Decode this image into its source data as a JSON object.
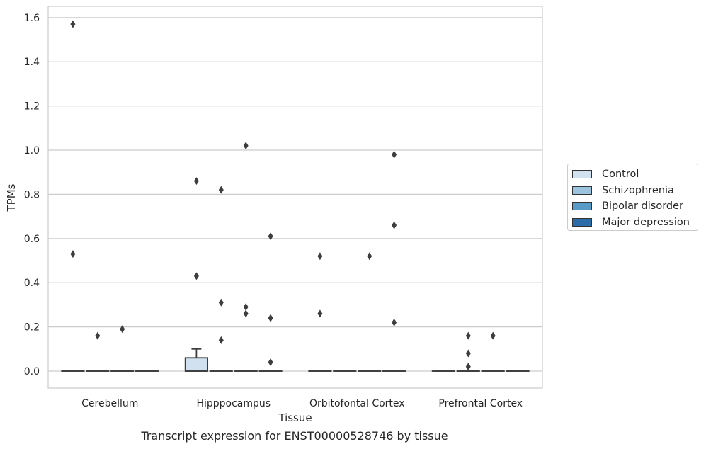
{
  "chart_data": {
    "type": "box",
    "xlabel": "Tissue",
    "ylabel": "TPMs",
    "caption": "Transcript expression for ENST00000528746 by tissue",
    "categories": [
      "Cerebellum",
      "Hipppocampus",
      "Orbitofontal Cortex",
      "Prefrontal Cortex"
    ],
    "ylim": [
      -0.08,
      1.65
    ],
    "yticks": [
      "0.0",
      "0.2",
      "0.4",
      "0.6",
      "0.8",
      "1.0",
      "1.2",
      "1.4",
      "1.6"
    ],
    "grid": true,
    "legend_position": "right",
    "series": [
      {
        "name": "Control",
        "color": "#d1e1ef",
        "boxes": [
          {
            "category": "Cerebellum",
            "q1": 0,
            "median": 0,
            "q3": 0,
            "whisker_low": 0,
            "whisker_high": 0,
            "outliers": [
              1.57,
              0.53
            ]
          },
          {
            "category": "Hipppocampus",
            "q1": 0,
            "median": 0,
            "q3": 0.06,
            "whisker_low": 0,
            "whisker_high": 0.1,
            "outliers": [
              0.86,
              0.43
            ]
          },
          {
            "category": "Orbitofontal Cortex",
            "q1": 0,
            "median": 0,
            "q3": 0,
            "whisker_low": 0,
            "whisker_high": 0,
            "outliers": [
              0.52,
              0.26
            ]
          },
          {
            "category": "Prefrontal Cortex",
            "q1": 0,
            "median": 0,
            "q3": 0,
            "whisker_low": 0,
            "whisker_high": 0,
            "outliers": []
          }
        ]
      },
      {
        "name": "Schizophrenia",
        "color": "#9dc4de",
        "boxes": [
          {
            "category": "Cerebellum",
            "q1": 0,
            "median": 0,
            "q3": 0,
            "whisker_low": 0,
            "whisker_high": 0,
            "outliers": [
              0.16
            ]
          },
          {
            "category": "Hipppocampus",
            "q1": 0,
            "median": 0,
            "q3": 0,
            "whisker_low": 0,
            "whisker_high": 0,
            "outliers": [
              0.82,
              0.31,
              0.14
            ]
          },
          {
            "category": "Orbitofontal Cortex",
            "q1": 0,
            "median": 0,
            "q3": 0,
            "whisker_low": 0,
            "whisker_high": 0,
            "outliers": []
          },
          {
            "category": "Prefrontal Cortex",
            "q1": 0,
            "median": 0,
            "q3": 0,
            "whisker_low": 0,
            "whisker_high": 0,
            "outliers": [
              0.16,
              0.08,
              0.02
            ]
          }
        ]
      },
      {
        "name": "Bipolar disorder",
        "color": "#5a9ac6",
        "boxes": [
          {
            "category": "Cerebellum",
            "q1": 0,
            "median": 0,
            "q3": 0,
            "whisker_low": 0,
            "whisker_high": 0,
            "outliers": [
              0.19
            ]
          },
          {
            "category": "Hipppocampus",
            "q1": 0,
            "median": 0,
            "q3": 0,
            "whisker_low": 0,
            "whisker_high": 0,
            "outliers": [
              1.02,
              0.29,
              0.26
            ]
          },
          {
            "category": "Orbitofontal Cortex",
            "q1": 0,
            "median": 0,
            "q3": 0,
            "whisker_low": 0,
            "whisker_high": 0,
            "outliers": [
              0.52
            ]
          },
          {
            "category": "Prefrontal Cortex",
            "q1": 0,
            "median": 0,
            "q3": 0,
            "whisker_low": 0,
            "whisker_high": 0,
            "outliers": [
              0.16
            ]
          }
        ]
      },
      {
        "name": "Major depression",
        "color": "#2c6ca9",
        "boxes": [
          {
            "category": "Cerebellum",
            "q1": 0,
            "median": 0,
            "q3": 0,
            "whisker_low": 0,
            "whisker_high": 0,
            "outliers": []
          },
          {
            "category": "Hipppocampus",
            "q1": 0,
            "median": 0,
            "q3": 0,
            "whisker_low": 0,
            "whisker_high": 0,
            "outliers": [
              0.61,
              0.24,
              0.04
            ]
          },
          {
            "category": "Orbitofontal Cortex",
            "q1": 0,
            "median": 0,
            "q3": 0,
            "whisker_low": 0,
            "whisker_high": 0,
            "outliers": [
              0.98,
              0.66,
              0.22
            ]
          },
          {
            "category": "Prefrontal Cortex",
            "q1": 0,
            "median": 0,
            "q3": 0,
            "whisker_low": 0,
            "whisker_high": 0,
            "outliers": []
          }
        ]
      }
    ]
  }
}
